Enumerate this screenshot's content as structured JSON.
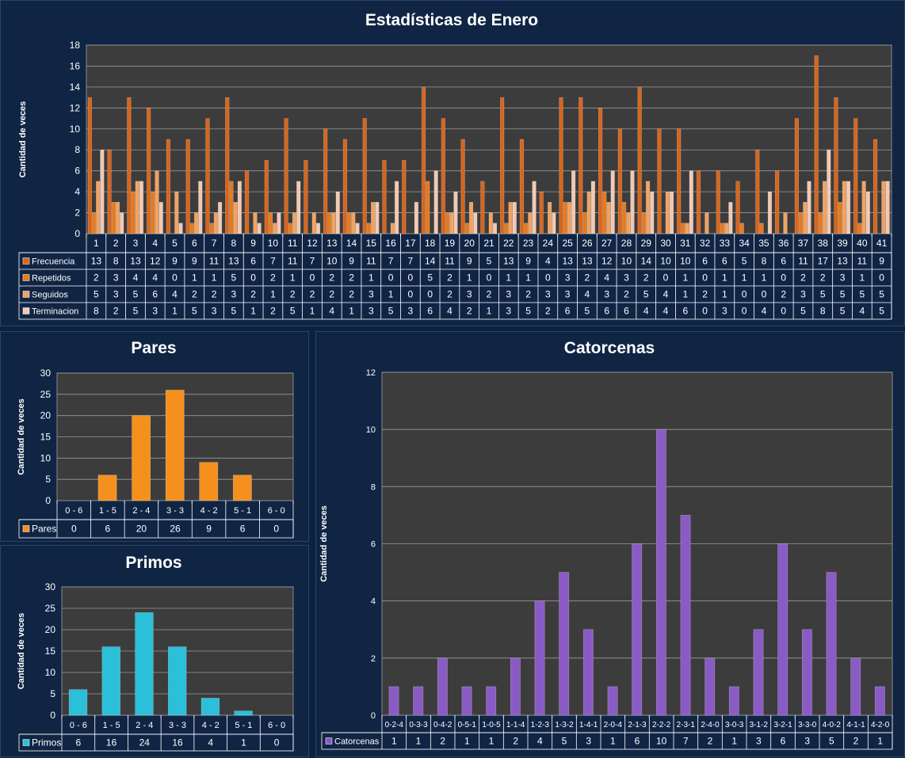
{
  "colors": {
    "frecuencia": "#d9641a",
    "repetidos": "#e57a1e",
    "seguidos": "#f2a260",
    "terminacion": "#f3c9b4",
    "pares": "#f5901e",
    "primos": "#2bbfd9",
    "catorcenas": "#8a5bc4",
    "plot_bg": "#3c3c3c",
    "page_bg": "#0d2240"
  },
  "chart_data": [
    {
      "type": "bar",
      "title": "Estadísticas de Enero",
      "ylabel": "Cantidad de veces",
      "ylim": [
        0,
        18
      ],
      "yticks": [
        0,
        2,
        4,
        6,
        8,
        10,
        12,
        14,
        16,
        18
      ],
      "categories": [
        "1",
        "2",
        "3",
        "4",
        "5",
        "6",
        "7",
        "8",
        "9",
        "10",
        "11",
        "12",
        "13",
        "14",
        "15",
        "16",
        "17",
        "18",
        "19",
        "20",
        "21",
        "22",
        "23",
        "24",
        "25",
        "26",
        "27",
        "28",
        "29",
        "30",
        "31",
        "32",
        "33",
        "34",
        "35",
        "36",
        "37",
        "38",
        "39",
        "40",
        "41"
      ],
      "series": [
        {
          "name": "Frecuencia",
          "values": [
            13,
            8,
            13,
            12,
            9,
            9,
            11,
            13,
            6,
            7,
            11,
            7,
            10,
            9,
            11,
            7,
            7,
            14,
            11,
            9,
            5,
            13,
            9,
            4,
            13,
            13,
            12,
            10,
            14,
            10,
            10,
            6,
            6,
            5,
            8,
            6,
            11,
            17,
            13,
            11,
            9
          ]
        },
        {
          "name": "Repetidos",
          "values": [
            2,
            3,
            4,
            4,
            0,
            1,
            1,
            5,
            0,
            2,
            1,
            0,
            2,
            2,
            1,
            0,
            0,
            5,
            2,
            1,
            0,
            1,
            1,
            0,
            3,
            2,
            4,
            3,
            2,
            0,
            1,
            0,
            1,
            1,
            1,
            0,
            2,
            2,
            3,
            1,
            0
          ]
        },
        {
          "name": "Seguidos",
          "values": [
            5,
            3,
            5,
            6,
            4,
            2,
            2,
            3,
            2,
            1,
            2,
            2,
            2,
            2,
            3,
            1,
            0,
            0,
            2,
            3,
            2,
            3,
            2,
            3,
            3,
            4,
            3,
            2,
            5,
            4,
            1,
            2,
            1,
            0,
            0,
            2,
            3,
            5,
            5,
            5,
            5
          ]
        },
        {
          "name": "Terminacion",
          "values": [
            8,
            2,
            5,
            3,
            1,
            5,
            3,
            5,
            1,
            2,
            5,
            1,
            4,
            1,
            3,
            5,
            3,
            6,
            4,
            2,
            1,
            3,
            5,
            2,
            6,
            5,
            6,
            6,
            4,
            4,
            6,
            0,
            3,
            0,
            4,
            0,
            5,
            8,
            5,
            4,
            5
          ]
        }
      ]
    },
    {
      "type": "bar",
      "title": "Pares",
      "ylabel": "Cantidad de veces",
      "ylim": [
        0,
        30
      ],
      "yticks": [
        0,
        5,
        10,
        15,
        20,
        25,
        30
      ],
      "categories": [
        "0 - 6",
        "1 - 5",
        "2 - 4",
        "3 - 3",
        "4 - 2",
        "5 - 1",
        "6 - 0"
      ],
      "series": [
        {
          "name": "Pares",
          "values": [
            0,
            6,
            20,
            26,
            9,
            6,
            0
          ]
        }
      ]
    },
    {
      "type": "bar",
      "title": "Primos",
      "ylabel": "Cantidad de veces",
      "ylim": [
        0,
        30
      ],
      "yticks": [
        0,
        5,
        10,
        15,
        20,
        25,
        30
      ],
      "categories": [
        "0 - 6",
        "1 - 5",
        "2 - 4",
        "3 - 3",
        "4 - 2",
        "5 - 1",
        "6 - 0"
      ],
      "series": [
        {
          "name": "Primos",
          "values": [
            6,
            16,
            24,
            16,
            4,
            1,
            0
          ]
        }
      ]
    },
    {
      "type": "bar",
      "title": "Catorcenas",
      "ylabel": "Cantidad de veces",
      "ylim": [
        0,
        12
      ],
      "yticks": [
        0,
        2,
        4,
        6,
        8,
        10,
        12
      ],
      "categories": [
        "0-2-4",
        "0-3-3",
        "0-4-2",
        "0-5-1",
        "1-0-5",
        "1-1-4",
        "1-2-3",
        "1-3-2",
        "1-4-1",
        "2-0-4",
        "2-1-3",
        "2-2-2",
        "2-3-1",
        "2-4-0",
        "3-0-3",
        "3-1-2",
        "3-2-1",
        "3-3-0",
        "4-0-2",
        "4-1-1",
        "4-2-0"
      ],
      "series": [
        {
          "name": "Catorcenas",
          "values": [
            1,
            1,
            2,
            1,
            1,
            2,
            4,
            5,
            3,
            1,
            6,
            10,
            7,
            2,
            1,
            3,
            6,
            3,
            5,
            2,
            1
          ]
        }
      ]
    }
  ]
}
